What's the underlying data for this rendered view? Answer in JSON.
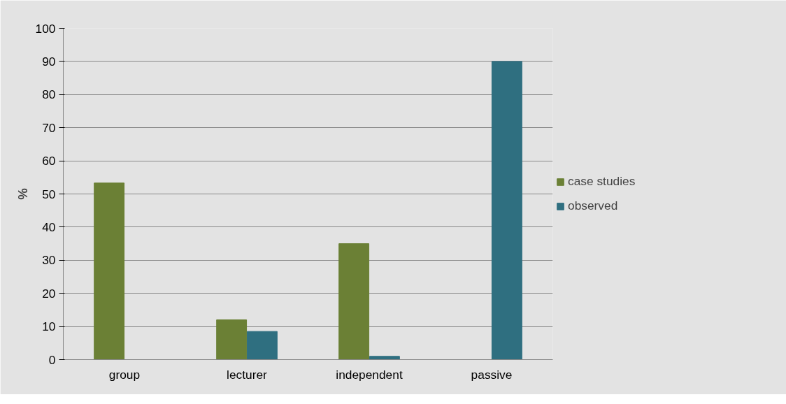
{
  "chart_data": {
    "type": "bar",
    "ylabel": "%",
    "categories": [
      "group",
      "lecturer",
      "independent",
      "passive"
    ],
    "series": [
      {
        "name": "case studies",
        "color": "#6b8035",
        "values": [
          53.3,
          12,
          35,
          0
        ]
      },
      {
        "name": "observed",
        "color": "#2f6f80",
        "values": [
          0,
          8.5,
          1,
          90
        ]
      }
    ],
    "ylim": [
      0,
      100
    ],
    "yticks": [
      0,
      10,
      20,
      30,
      40,
      50,
      60,
      70,
      80,
      90,
      100
    ],
    "grid": "y",
    "legend": "right"
  }
}
